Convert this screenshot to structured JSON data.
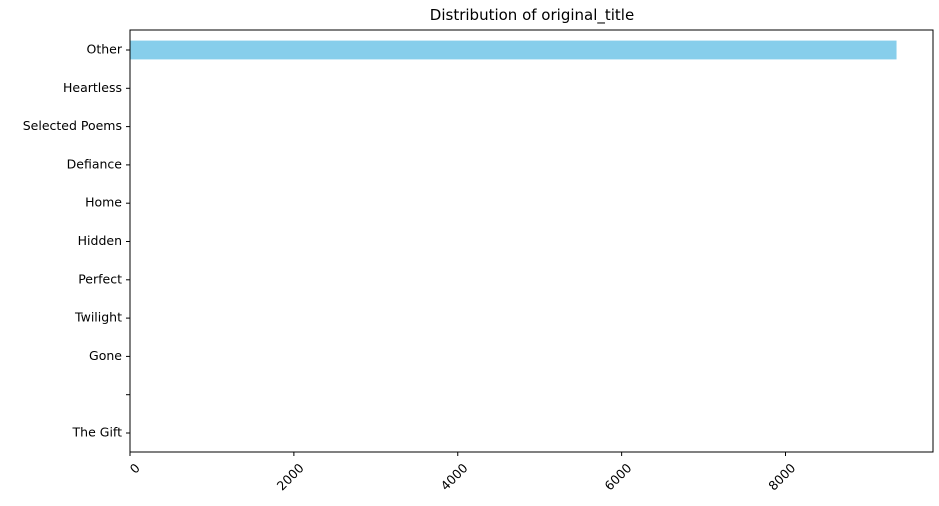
{
  "chart_data": {
    "type": "bar",
    "orientation": "horizontal",
    "title": "Distribution of original_title",
    "xlabel": "",
    "ylabel": "",
    "categories": [
      "Other",
      "Heartless",
      "Selected Poems",
      "Defiance",
      "Home",
      "Hidden",
      "Perfect",
      "Twilight",
      "Gone",
      " ",
      "The Gift"
    ],
    "values": [
      9355,
      5,
      5,
      4,
      4,
      4,
      4,
      4,
      4,
      4,
      4
    ],
    "xlim": [
      0,
      9800
    ],
    "xticks": [
      0,
      2000,
      4000,
      6000,
      8000
    ],
    "xtick_labels": [
      "0",
      "2000",
      "4000",
      "6000",
      "8000"
    ],
    "xtick_rotation": 45,
    "grid": false,
    "legend": "none",
    "bar_color": "#87ceeb"
  }
}
